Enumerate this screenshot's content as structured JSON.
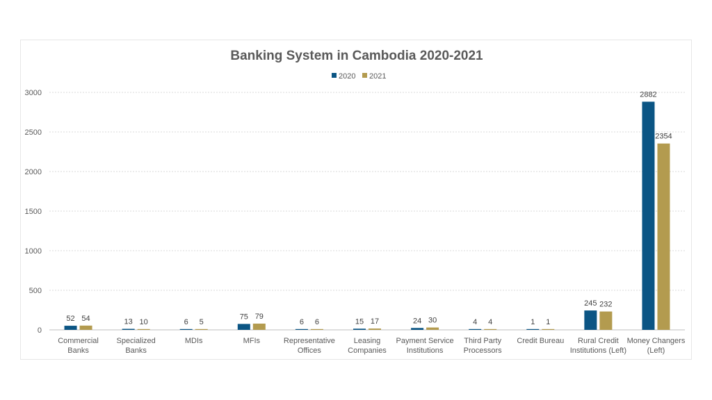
{
  "chart_data": {
    "type": "bar",
    "title": "Banking System in Cambodia 2020-2021",
    "xlabel": "",
    "ylabel": "",
    "ylim": [
      0,
      3000
    ],
    "yticks": [
      0,
      500,
      1000,
      1500,
      2000,
      2500,
      3000
    ],
    "grid": true,
    "legend_position": "top",
    "categories": [
      [
        "Commercial",
        "Banks"
      ],
      [
        "Specialized",
        "Banks"
      ],
      [
        "MDIs"
      ],
      [
        "MFIs"
      ],
      [
        "Representative",
        "Offices"
      ],
      [
        "Leasing",
        "Companies"
      ],
      [
        "Payment Service",
        "Institutions"
      ],
      [
        "Third Party",
        "Processors"
      ],
      [
        "Credit Bureau"
      ],
      [
        "Rural Credit",
        "Institutions (Left)"
      ],
      [
        "Money Changers",
        "(Left)"
      ]
    ],
    "series": [
      {
        "name": "2020",
        "color": "#0b5584",
        "values": [
          52,
          13,
          6,
          75,
          6,
          15,
          24,
          4,
          1,
          245,
          2882
        ]
      },
      {
        "name": "2021",
        "color": "#b39b4f",
        "values": [
          54,
          10,
          5,
          79,
          6,
          17,
          30,
          4,
          1,
          232,
          2354
        ]
      }
    ],
    "gridline_color": "#d9d9d9",
    "axis_color": "#bfbfbf"
  }
}
